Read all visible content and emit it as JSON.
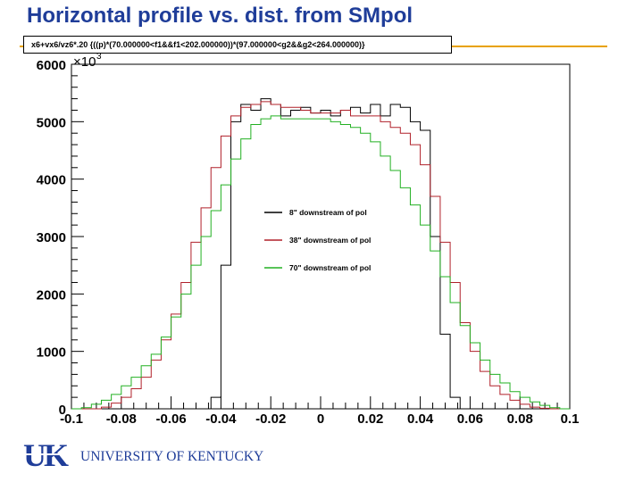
{
  "slide": {
    "title": "Horizontal profile vs. dist. from SMpol",
    "cut_expression": "x6+vx6/vz6*.20 {((p)*(70.000000<f1&&f1<202.000000))*(97.000000<g2&&g2<264.000000)}",
    "logo": {
      "monogram": "UK",
      "name": "UNIVERSITY OF KENTUCKY"
    }
  },
  "colors": {
    "title": "#1f3d99",
    "rule": "#e8a200",
    "series_8in": "#000000",
    "series_38in": "#b0202a",
    "series_70in": "#22b022"
  },
  "chart_data": {
    "type": "line",
    "style": "step-histogram",
    "title": "",
    "xlabel": "",
    "ylabel": "",
    "y_multiplier_label": "×10",
    "y_multiplier_exponent": "3",
    "xlim": [
      -0.1,
      0.1
    ],
    "ylim": [
      0,
      6000
    ],
    "x_ticks": [
      -0.1,
      -0.08,
      -0.06,
      -0.04,
      -0.02,
      0,
      0.02,
      0.04,
      0.06,
      0.08,
      0.1
    ],
    "x_tick_labels": [
      "-0.1",
      "-0.08",
      "-0.06",
      "-0.04",
      "-0.02",
      "0",
      "0.02",
      "0.04",
      "0.06",
      "0.08",
      "0.1"
    ],
    "y_ticks": [
      0,
      1000,
      2000,
      3000,
      4000,
      5000,
      6000
    ],
    "y_tick_labels": [
      "0",
      "1000",
      "2000",
      "3000",
      "4000",
      "5000",
      "6000"
    ],
    "grid": false,
    "legend_position": "right-middle",
    "bin_width": 0.002,
    "x": [
      -0.098,
      -0.094,
      -0.09,
      -0.086,
      -0.082,
      -0.078,
      -0.074,
      -0.07,
      -0.066,
      -0.062,
      -0.058,
      -0.054,
      -0.05,
      -0.046,
      -0.042,
      -0.038,
      -0.034,
      -0.03,
      -0.026,
      -0.022,
      -0.018,
      -0.014,
      -0.01,
      -0.006,
      -0.002,
      0.002,
      0.006,
      0.01,
      0.014,
      0.018,
      0.022,
      0.026,
      0.03,
      0.034,
      0.038,
      0.042,
      0.046,
      0.05,
      0.054,
      0.058,
      0.062,
      0.066,
      0.07,
      0.074,
      0.078,
      0.082,
      0.086,
      0.09,
      0.094,
      0.098
    ],
    "series": [
      {
        "name": "8\" downstream of pol",
        "values": [
          0,
          0,
          0,
          0,
          0,
          0,
          0,
          0,
          0,
          0,
          0,
          0,
          0,
          0,
          200,
          2500,
          5000,
          5300,
          5200,
          5400,
          5300,
          5100,
          5200,
          5250,
          5150,
          5200,
          5100,
          5200,
          5250,
          5150,
          5300,
          5100,
          5300,
          5250,
          5000,
          4850,
          3000,
          1300,
          200,
          0,
          0,
          0,
          0,
          0,
          0,
          0,
          0,
          0,
          0,
          0
        ]
      },
      {
        "name": "38\" downstream of pol",
        "values": [
          0,
          0,
          0,
          30,
          100,
          200,
          350,
          550,
          850,
          1200,
          1650,
          2200,
          2900,
          3500,
          4200,
          4750,
          5100,
          5250,
          5300,
          5350,
          5300,
          5250,
          5250,
          5200,
          5150,
          5150,
          5150,
          5200,
          5100,
          5100,
          5100,
          5000,
          4900,
          4800,
          4600,
          4250,
          3700,
          2900,
          2200,
          1500,
          1000,
          650,
          400,
          250,
          150,
          80,
          30,
          10,
          0,
          0
        ]
      },
      {
        "name": "70\" downstream of pol",
        "values": [
          0,
          20,
          80,
          150,
          250,
          400,
          550,
          750,
          950,
          1250,
          1600,
          2000,
          2500,
          3000,
          3450,
          3900,
          4350,
          4700,
          4950,
          5050,
          5100,
          5050,
          5050,
          5050,
          5050,
          5050,
          5000,
          4950,
          4900,
          4800,
          4650,
          4400,
          4150,
          3850,
          3550,
          3200,
          2750,
          2300,
          1850,
          1450,
          1150,
          850,
          600,
          450,
          300,
          200,
          120,
          60,
          20,
          0
        ]
      }
    ]
  }
}
